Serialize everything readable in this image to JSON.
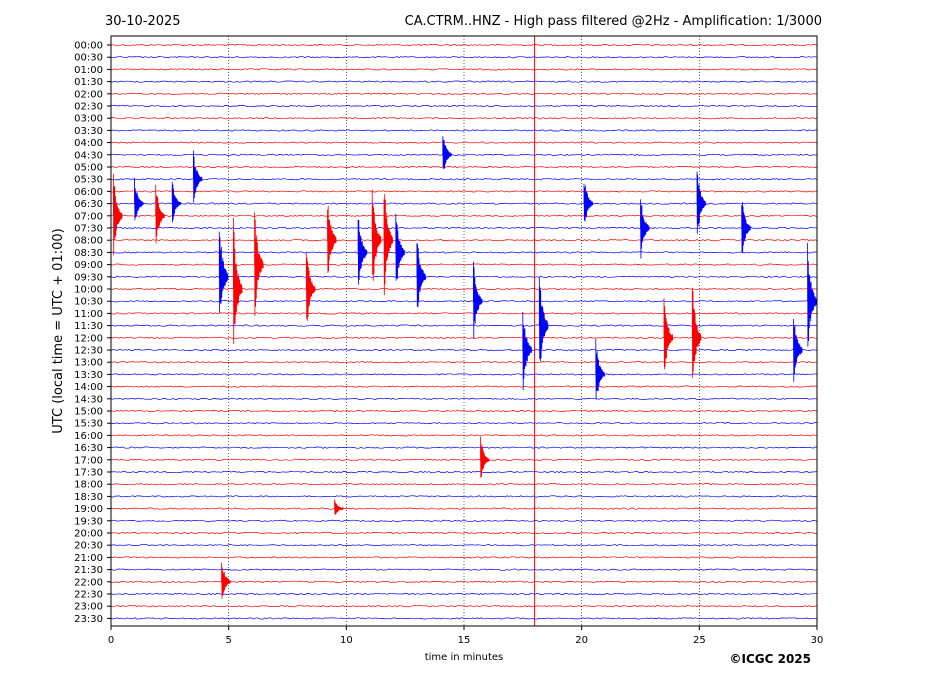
{
  "date_label": "30-10-2025",
  "title": "CA.CTRM..HNZ - High pass filtered @2Hz - Amplification: 1/3000",
  "copyright": "©ICGC 2025",
  "colors": {
    "red": "#ff0000",
    "blue": "#0000ff",
    "grid": "#000000",
    "marker": "#ff0000"
  },
  "chart_data": {
    "type": "line",
    "subtype": "helicorder",
    "xlabel": "time in minutes",
    "ylabel": "UTC (local time = UTC + 01:00)",
    "xlim": [
      0,
      30
    ],
    "xticks": [
      "0",
      "5",
      "10",
      "15",
      "20",
      "25",
      "30"
    ],
    "x_grid_minutes": [
      5,
      10,
      15,
      20,
      25
    ],
    "current_time_marker_minute": 18,
    "rows": [
      "00:00",
      "00:30",
      "01:00",
      "01:30",
      "02:00",
      "02:30",
      "03:00",
      "03:30",
      "04:00",
      "04:30",
      "05:00",
      "05:30",
      "06:00",
      "06:30",
      "07:00",
      "07:30",
      "08:00",
      "08:30",
      "09:00",
      "09:30",
      "10:00",
      "10:30",
      "11:00",
      "11:30",
      "12:00",
      "12:30",
      "13:00",
      "13:30",
      "14:00",
      "14:30",
      "15:00",
      "15:30",
      "16:00",
      "16:30",
      "17:00",
      "17:30",
      "18:00",
      "18:30",
      "19:00",
      "19:30",
      "20:00",
      "20:30",
      "21:00",
      "21:30",
      "22:00",
      "22:30",
      "23:00",
      "23:30"
    ],
    "row_colors": [
      "red",
      "blue"
    ],
    "events": [
      {
        "row": "07:00",
        "minute": 0.1,
        "amplitude": 4.0
      },
      {
        "row": "06:30",
        "minute": 1.0,
        "amplitude": 2.5
      },
      {
        "row": "07:00",
        "minute": 1.9,
        "amplitude": 3.0
      },
      {
        "row": "06:30",
        "minute": 2.6,
        "amplitude": 2.0
      },
      {
        "row": "05:30",
        "minute": 3.5,
        "amplitude": 2.5
      },
      {
        "row": "09:30",
        "minute": 4.6,
        "amplitude": 5.0
      },
      {
        "row": "10:00",
        "minute": 5.2,
        "amplitude": 6.0
      },
      {
        "row": "09:00",
        "minute": 6.1,
        "amplitude": 5.0
      },
      {
        "row": "10:00",
        "minute": 8.3,
        "amplitude": 4.0
      },
      {
        "row": "08:00",
        "minute": 9.2,
        "amplitude": 4.0
      },
      {
        "row": "08:30",
        "minute": 10.5,
        "amplitude": 4.0
      },
      {
        "row": "08:00",
        "minute": 11.1,
        "amplitude": 5.0
      },
      {
        "row": "08:00",
        "minute": 11.6,
        "amplitude": 5.5
      },
      {
        "row": "08:30",
        "minute": 12.1,
        "amplitude": 4.0
      },
      {
        "row": "09:30",
        "minute": 13.0,
        "amplitude": 4.0
      },
      {
        "row": "04:30",
        "minute": 14.1,
        "amplitude": 2.0
      },
      {
        "row": "10:30",
        "minute": 15.4,
        "amplitude": 3.5
      },
      {
        "row": "17:00",
        "minute": 15.7,
        "amplitude": 2.0
      },
      {
        "row": "12:30",
        "minute": 17.5,
        "amplitude": 4.0
      },
      {
        "row": "11:30",
        "minute": 18.2,
        "amplitude": 5.0
      },
      {
        "row": "06:30",
        "minute": 20.1,
        "amplitude": 2.5
      },
      {
        "row": "13:30",
        "minute": 20.6,
        "amplitude": 3.0
      },
      {
        "row": "07:30",
        "minute": 22.5,
        "amplitude": 3.0
      },
      {
        "row": "12:00",
        "minute": 23.5,
        "amplitude": 4.0
      },
      {
        "row": "12:00",
        "minute": 24.7,
        "amplitude": 5.0
      },
      {
        "row": "06:30",
        "minute": 24.9,
        "amplitude": 3.5
      },
      {
        "row": "07:30",
        "minute": 26.8,
        "amplitude": 3.0
      },
      {
        "row": "12:30",
        "minute": 29.0,
        "amplitude": 3.5
      },
      {
        "row": "10:30",
        "minute": 29.6,
        "amplitude": 5.0
      },
      {
        "row": "22:00",
        "minute": 4.7,
        "amplitude": 2.0
      },
      {
        "row": "19:00",
        "minute": 9.5,
        "amplitude": 0.8
      }
    ]
  }
}
